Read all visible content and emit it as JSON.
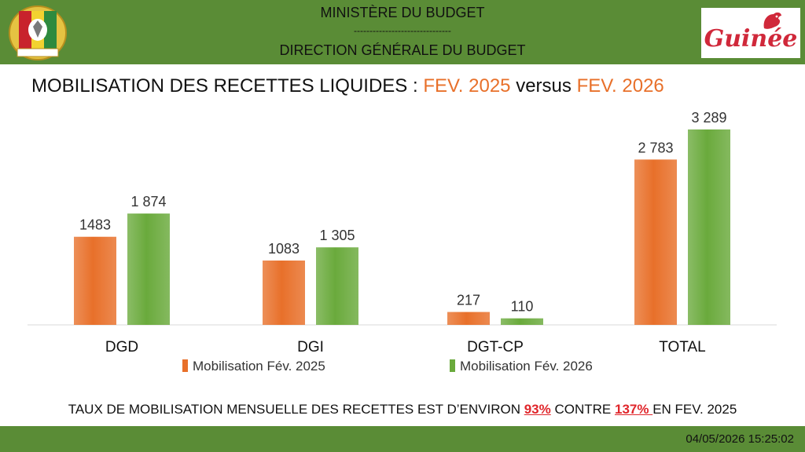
{
  "header": {
    "line1": "MINISTÈRE DU BUDGET",
    "separator": "-------------------------------",
    "line2": "DIRECTION GÉNÉRALE DU BUDGET",
    "logo_text": "Guinée"
  },
  "title": {
    "part1": "MOBILISATION DES RECETTES LIQUIDES : ",
    "highlight1": "FEV. 2025",
    "part2": " versus ",
    "highlight2": "FEV. 2026"
  },
  "chart_data": {
    "type": "bar",
    "categories": [
      "DGD",
      "DGI",
      "DGT-CP",
      "TOTAL"
    ],
    "series": [
      {
        "name": "Mobilisation Fév. 2025",
        "values": [
          1483,
          1083,
          217,
          2783
        ],
        "labels": [
          "1483",
          "1083",
          "217",
          "2 783"
        ],
        "color": "#e8702a"
      },
      {
        "name": "Mobilisation Fév. 2026",
        "values": [
          1874,
          1305,
          110,
          3289
        ],
        "labels": [
          "1 874",
          "1 305",
          "110",
          "3 289"
        ],
        "color": "#6aaa3c"
      }
    ],
    "ylim": [
      0,
      3289
    ],
    "grid": false,
    "legend": "bottom"
  },
  "footer": {
    "text1": "TAUX DE MOBILISATION MENSUELLE DES RECETTES EST D’ENVIRON ",
    "pct1": "93%",
    "text2": " CONTRE ",
    "pct2": "137% ",
    "text3": "EN FEV. 2025",
    "timestamp": "04/05/2026 15:25:02"
  },
  "colors": {
    "header_bg": "#5a8c36",
    "accent_orange": "#e8702a",
    "accent_green": "#6aaa3c",
    "accent_red": "#e0262b"
  }
}
